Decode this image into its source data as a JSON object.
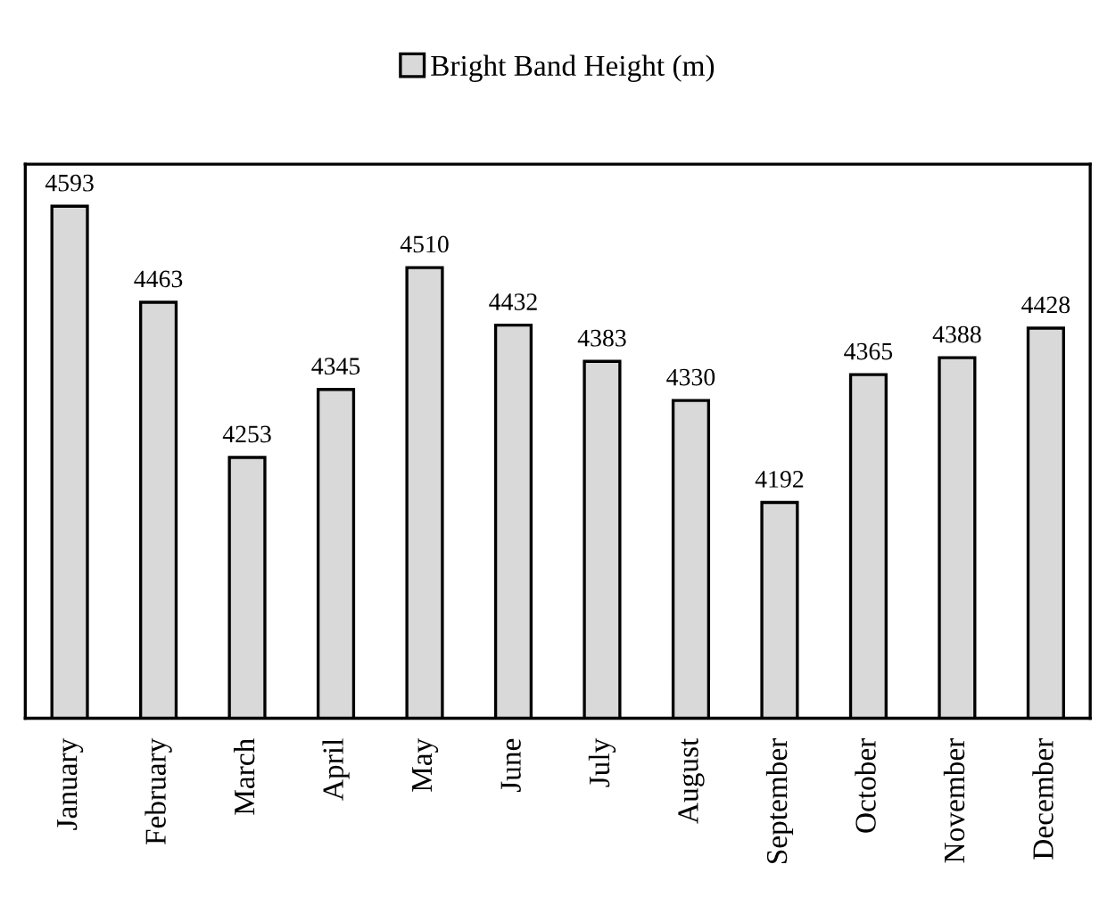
{
  "chart_data": {
    "type": "bar",
    "categories": [
      "January",
      "February",
      "March",
      "April",
      "May",
      "June",
      "July",
      "August",
      "September",
      "October",
      "November",
      "December"
    ],
    "series": [
      {
        "name": "Bright Band Height (m)",
        "color": "#d9d9d9",
        "values": [
          4593,
          4463,
          4253,
          4345,
          4510,
          4432,
          4383,
          4330,
          4192,
          4365,
          4388,
          4428
        ]
      }
    ],
    "ylim": [
      3900,
      4650
    ],
    "tick_labels": "x",
    "data_labels": true,
    "legend": "top",
    "grid": false
  }
}
